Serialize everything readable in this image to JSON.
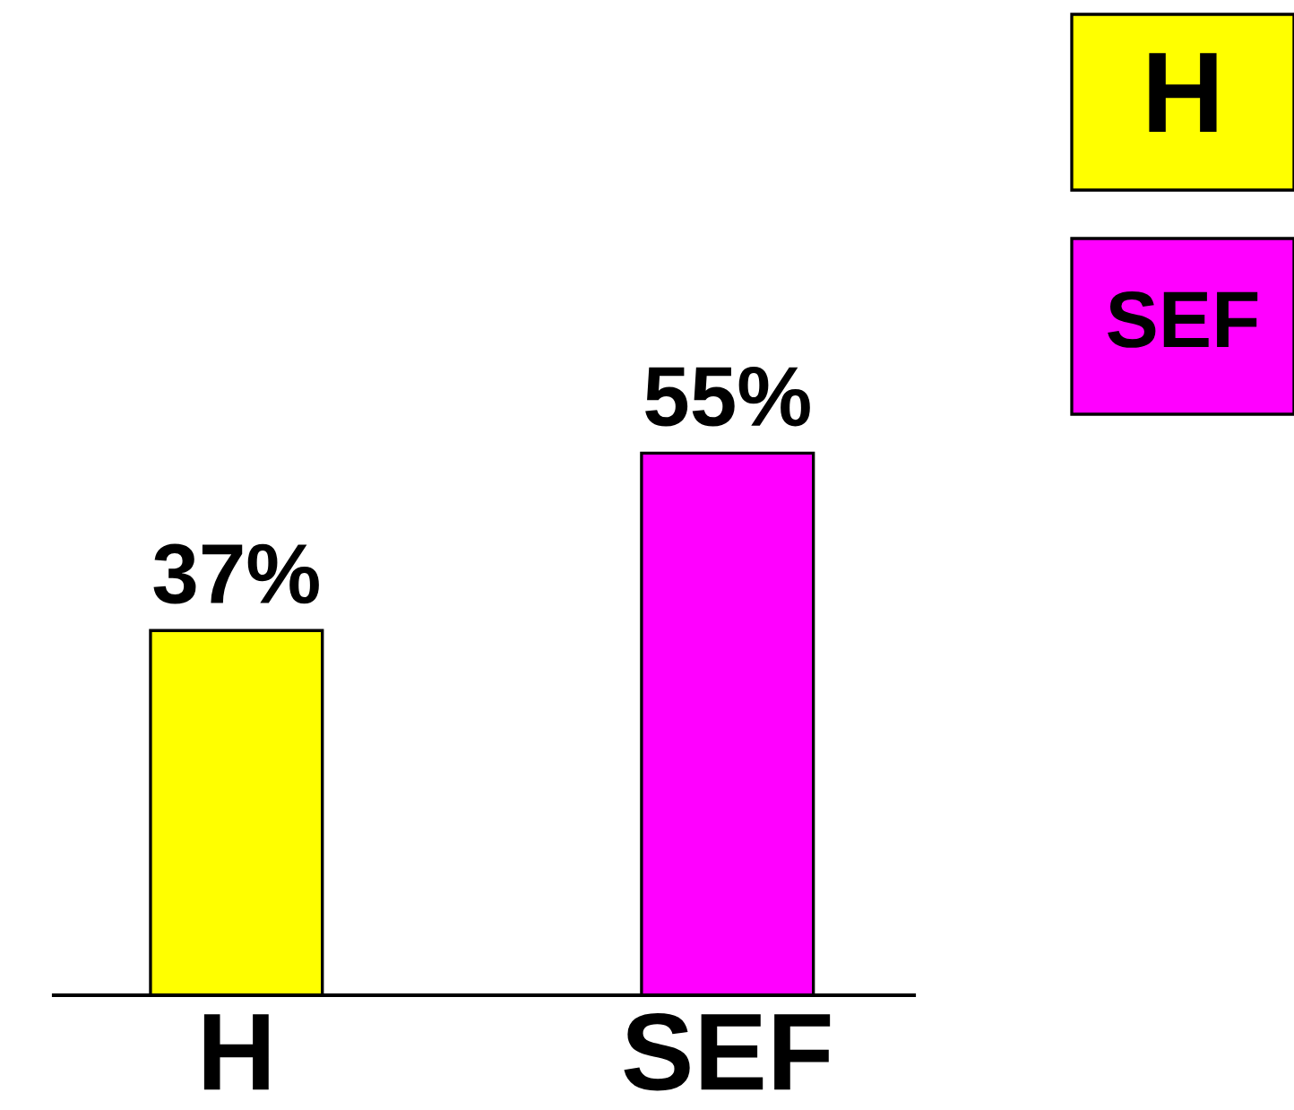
{
  "chart_data": {
    "type": "bar",
    "categories": [
      "H",
      "SEF"
    ],
    "series": [
      {
        "name": "H",
        "color": "#ffff00",
        "values": [
          37,
          null
        ],
        "value_labels": [
          "37%",
          null
        ]
      },
      {
        "name": "SEF",
        "color": "#ff00ff",
        "values": [
          null,
          55
        ],
        "value_labels": [
          null,
          "55%"
        ]
      }
    ],
    "legend": "top right",
    "tick_labels": "x"
  }
}
